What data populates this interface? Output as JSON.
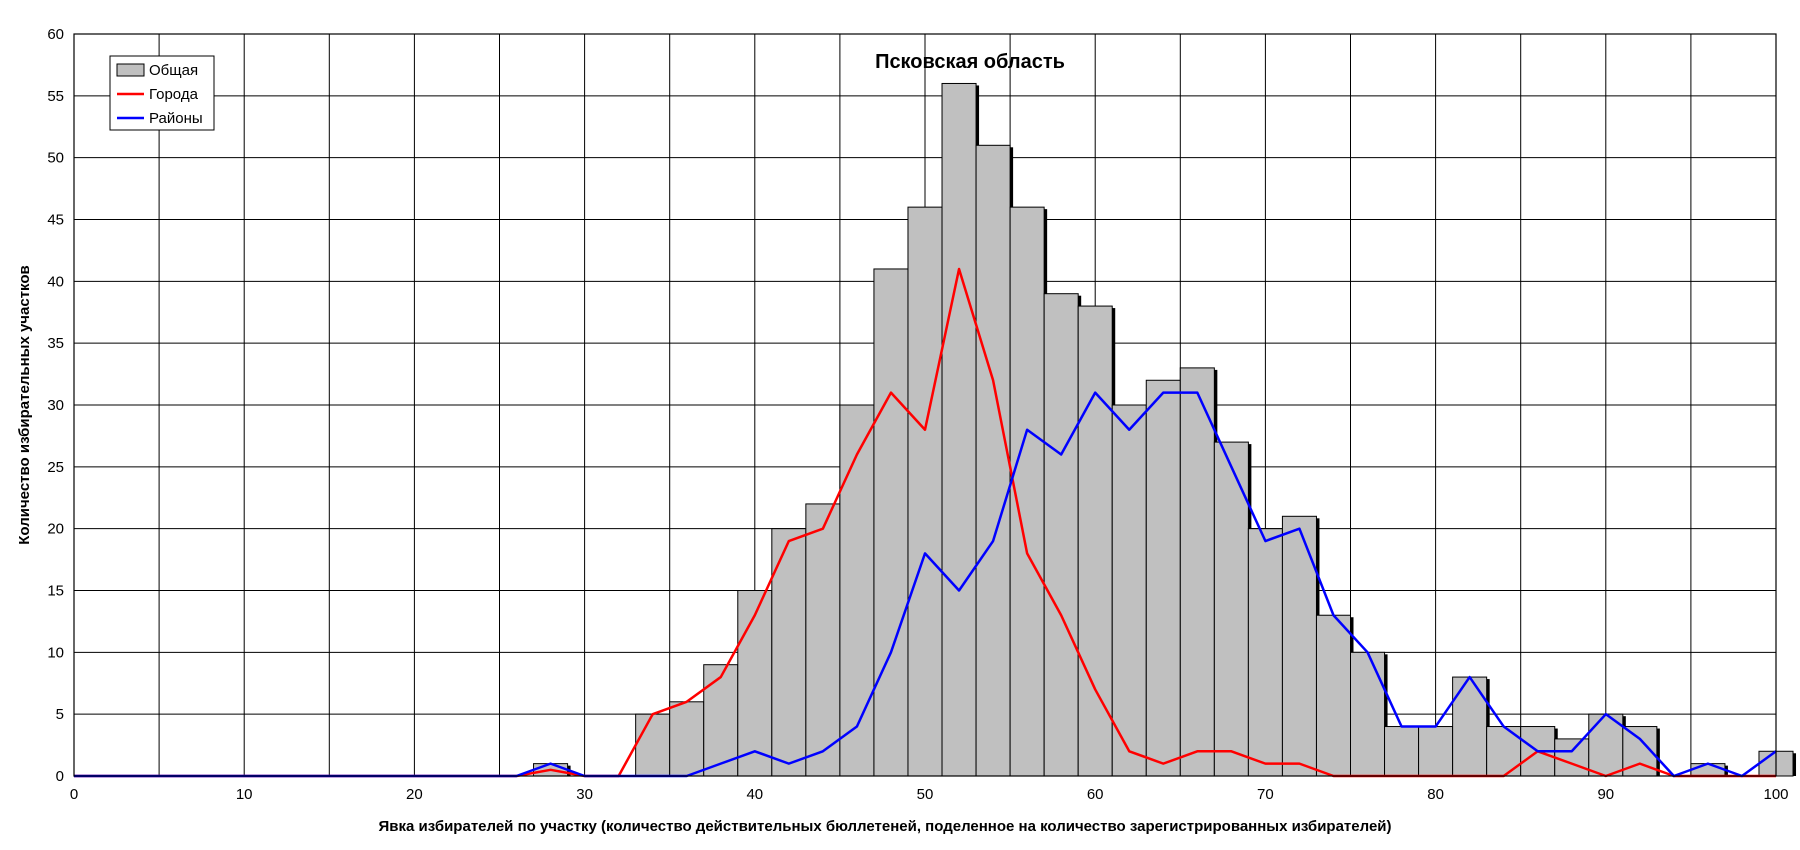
{
  "chart_data": {
    "type": "bar",
    "title": "Псковская область",
    "xlabel": "Явка избирателей по участку (количество действительных бюллетеней, поделенное на количество зарегистрированных избирателей)",
    "ylabel": "Количество избирательных участков",
    "xlim": [
      0,
      100
    ],
    "ylim": [
      0,
      60
    ],
    "x_ticks": [
      0,
      10,
      20,
      30,
      40,
      50,
      60,
      70,
      80,
      90,
      100
    ],
    "y_ticks": [
      0,
      5,
      10,
      15,
      20,
      25,
      30,
      35,
      40,
      45,
      50,
      55,
      60
    ],
    "grid": true,
    "legend_position": "top-left",
    "bin_width": 2,
    "series": [
      {
        "name": "Общая",
        "type": "bar",
        "color": "#c0c0c0",
        "x": [
          28,
          34,
          36,
          38,
          40,
          42,
          44,
          46,
          48,
          50,
          52,
          54,
          56,
          58,
          60,
          62,
          64,
          66,
          68,
          70,
          72,
          74,
          76,
          78,
          80,
          82,
          84,
          86,
          88,
          90,
          92,
          96,
          100
        ],
        "values": [
          1,
          5,
          6,
          9,
          15,
          20,
          22,
          30,
          41,
          46,
          56,
          51,
          46,
          39,
          38,
          30,
          32,
          33,
          27,
          20,
          21,
          13,
          10,
          4,
          4,
          8,
          4,
          4,
          3,
          5,
          4,
          1,
          2
        ]
      },
      {
        "name": "Города",
        "type": "line",
        "color": "#ff0000",
        "x": [
          0,
          26,
          28,
          30,
          32,
          34,
          36,
          38,
          40,
          42,
          44,
          46,
          48,
          50,
          52,
          54,
          56,
          58,
          60,
          62,
          64,
          66,
          68,
          70,
          72,
          74,
          76,
          78,
          80,
          82,
          84,
          86,
          88,
          90,
          92,
          94,
          96,
          98,
          100
        ],
        "values": [
          0,
          0,
          0.5,
          0,
          0,
          5,
          6,
          8,
          13,
          19,
          20,
          26,
          31,
          28,
          41,
          32,
          18,
          13,
          7,
          2,
          1,
          2,
          2,
          1,
          1,
          0,
          0,
          0,
          0,
          0,
          0,
          2,
          1,
          0,
          1,
          0,
          0,
          0,
          0
        ]
      },
      {
        "name": "Районы",
        "type": "line",
        "color": "#0000ff",
        "x": [
          0,
          26,
          28,
          30,
          32,
          34,
          36,
          38,
          40,
          42,
          44,
          46,
          48,
          50,
          52,
          54,
          56,
          58,
          60,
          62,
          64,
          66,
          68,
          70,
          72,
          74,
          76,
          78,
          80,
          82,
          84,
          86,
          88,
          90,
          92,
          94,
          96,
          98,
          100
        ],
        "values": [
          0,
          0,
          1,
          0,
          0,
          0,
          0,
          1,
          2,
          1,
          2,
          4,
          10,
          18,
          15,
          19,
          28,
          26,
          31,
          28,
          31,
          31,
          25,
          19,
          20,
          13,
          10,
          4,
          4,
          8,
          4,
          2,
          2,
          5,
          3,
          0,
          1,
          0,
          2
        ]
      }
    ]
  }
}
